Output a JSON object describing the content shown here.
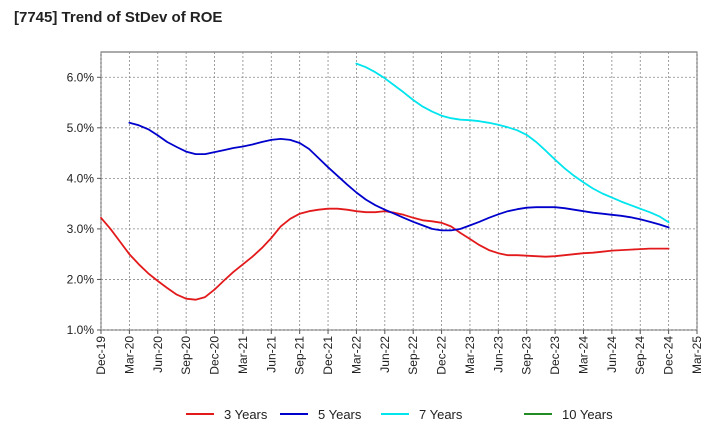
{
  "chart_data": {
    "type": "line",
    "title": "[7745]  Trend of StDev of ROE",
    "xlabel": "",
    "ylabel": "",
    "ylim": [
      1.0,
      6.5
    ],
    "y_ticks": [
      "1.0%",
      "2.0%",
      "3.0%",
      "4.0%",
      "5.0%",
      "6.0%"
    ],
    "y_tick_values": [
      1.0,
      2.0,
      3.0,
      4.0,
      5.0,
      6.0
    ],
    "x_ticks": [
      "Dec-19",
      "Mar-20",
      "Jun-20",
      "Sep-20",
      "Dec-20",
      "Mar-21",
      "Jun-21",
      "Sep-21",
      "Dec-21",
      "Mar-22",
      "Jun-22",
      "Sep-22",
      "Dec-22",
      "Mar-23",
      "Jun-23",
      "Sep-23",
      "Dec-23",
      "Mar-24",
      "Jun-24",
      "Sep-24",
      "Dec-24",
      "Mar-25"
    ],
    "grid": true,
    "legend_position": "bottom",
    "series": [
      {
        "name": "3 Years",
        "color": "#e31a1c",
        "points": [
          [
            "Dec-19",
            3.22
          ],
          [
            "Jan-20",
            3.0
          ],
          [
            "Feb-20",
            2.75
          ],
          [
            "Mar-20",
            2.5
          ],
          [
            "Apr-20",
            2.3
          ],
          [
            "May-20",
            2.12
          ],
          [
            "Jun-20",
            1.97
          ],
          [
            "Jul-20",
            1.83
          ],
          [
            "Aug-20",
            1.7
          ],
          [
            "Sep-20",
            1.62
          ],
          [
            "Oct-20",
            1.6
          ],
          [
            "Nov-20",
            1.65
          ],
          [
            "Dec-20",
            1.8
          ],
          [
            "Jan-21",
            1.98
          ],
          [
            "Feb-21",
            2.15
          ],
          [
            "Mar-21",
            2.3
          ],
          [
            "Apr-21",
            2.45
          ],
          [
            "May-21",
            2.62
          ],
          [
            "Jun-21",
            2.82
          ],
          [
            "Jul-21",
            3.05
          ],
          [
            "Aug-21",
            3.2
          ],
          [
            "Sep-21",
            3.3
          ],
          [
            "Oct-21",
            3.35
          ],
          [
            "Nov-21",
            3.38
          ],
          [
            "Dec-21",
            3.4
          ],
          [
            "Jan-22",
            3.4
          ],
          [
            "Feb-22",
            3.38
          ],
          [
            "Mar-22",
            3.35
          ],
          [
            "Apr-22",
            3.33
          ],
          [
            "May-22",
            3.33
          ],
          [
            "Jun-22",
            3.35
          ],
          [
            "Jul-22",
            3.32
          ],
          [
            "Aug-22",
            3.28
          ],
          [
            "Sep-22",
            3.22
          ],
          [
            "Oct-22",
            3.17
          ],
          [
            "Nov-22",
            3.15
          ],
          [
            "Dec-22",
            3.12
          ],
          [
            "Jan-23",
            3.05
          ],
          [
            "Feb-23",
            2.92
          ],
          [
            "Mar-23",
            2.8
          ],
          [
            "Apr-23",
            2.68
          ],
          [
            "May-23",
            2.58
          ],
          [
            "Jun-23",
            2.52
          ],
          [
            "Jul-23",
            2.48
          ],
          [
            "Aug-23",
            2.48
          ],
          [
            "Sep-23",
            2.47
          ],
          [
            "Oct-23",
            2.46
          ],
          [
            "Nov-23",
            2.45
          ],
          [
            "Dec-23",
            2.46
          ],
          [
            "Jan-24",
            2.48
          ],
          [
            "Feb-24",
            2.5
          ],
          [
            "Mar-24",
            2.52
          ],
          [
            "Apr-24",
            2.53
          ],
          [
            "May-24",
            2.55
          ],
          [
            "Jun-24",
            2.57
          ],
          [
            "Jul-24",
            2.58
          ],
          [
            "Aug-24",
            2.59
          ],
          [
            "Sep-24",
            2.6
          ],
          [
            "Oct-24",
            2.61
          ],
          [
            "Nov-24",
            2.61
          ],
          [
            "Dec-24",
            2.61
          ]
        ]
      },
      {
        "name": "5 Years",
        "color": "#0000cc",
        "points": [
          [
            "Mar-20",
            5.1
          ],
          [
            "Apr-20",
            5.05
          ],
          [
            "May-20",
            4.97
          ],
          [
            "Jun-20",
            4.85
          ],
          [
            "Jul-20",
            4.72
          ],
          [
            "Aug-20",
            4.62
          ],
          [
            "Sep-20",
            4.53
          ],
          [
            "Oct-20",
            4.48
          ],
          [
            "Nov-20",
            4.48
          ],
          [
            "Dec-20",
            4.52
          ],
          [
            "Jan-21",
            4.56
          ],
          [
            "Feb-21",
            4.6
          ],
          [
            "Mar-21",
            4.63
          ],
          [
            "Apr-21",
            4.67
          ],
          [
            "May-21",
            4.72
          ],
          [
            "Jun-21",
            4.76
          ],
          [
            "Jul-21",
            4.78
          ],
          [
            "Aug-21",
            4.76
          ],
          [
            "Sep-21",
            4.7
          ],
          [
            "Oct-21",
            4.58
          ],
          [
            "Nov-21",
            4.4
          ],
          [
            "Dec-21",
            4.22
          ],
          [
            "Jan-22",
            4.05
          ],
          [
            "Feb-22",
            3.88
          ],
          [
            "Mar-22",
            3.72
          ],
          [
            "Apr-22",
            3.58
          ],
          [
            "May-22",
            3.47
          ],
          [
            "Jun-22",
            3.38
          ],
          [
            "Jul-22",
            3.3
          ],
          [
            "Aug-22",
            3.22
          ],
          [
            "Sep-22",
            3.14
          ],
          [
            "Oct-22",
            3.07
          ],
          [
            "Nov-22",
            3.0
          ],
          [
            "Dec-22",
            2.97
          ],
          [
            "Jan-23",
            2.97
          ],
          [
            "Feb-23",
            3.0
          ],
          [
            "Mar-23",
            3.07
          ],
          [
            "Apr-23",
            3.14
          ],
          [
            "May-23",
            3.22
          ],
          [
            "Jun-23",
            3.29
          ],
          [
            "Jul-23",
            3.35
          ],
          [
            "Aug-23",
            3.39
          ],
          [
            "Sep-23",
            3.42
          ],
          [
            "Oct-23",
            3.43
          ],
          [
            "Nov-23",
            3.43
          ],
          [
            "Dec-23",
            3.43
          ],
          [
            "Jan-24",
            3.41
          ],
          [
            "Feb-24",
            3.38
          ],
          [
            "Mar-24",
            3.35
          ],
          [
            "Apr-24",
            3.32
          ],
          [
            "May-24",
            3.3
          ],
          [
            "Jun-24",
            3.28
          ],
          [
            "Jul-24",
            3.26
          ],
          [
            "Aug-24",
            3.23
          ],
          [
            "Sep-24",
            3.19
          ],
          [
            "Oct-24",
            3.14
          ],
          [
            "Nov-24",
            3.09
          ],
          [
            "Dec-24",
            3.03
          ]
        ]
      },
      {
        "name": "7 Years",
        "color": "#00e5ee",
        "points": [
          [
            "Mar-22",
            6.27
          ],
          [
            "Apr-22",
            6.2
          ],
          [
            "May-22",
            6.1
          ],
          [
            "Jun-22",
            5.98
          ],
          [
            "Jul-22",
            5.84
          ],
          [
            "Aug-22",
            5.7
          ],
          [
            "Sep-22",
            5.55
          ],
          [
            "Oct-22",
            5.42
          ],
          [
            "Nov-22",
            5.32
          ],
          [
            "Dec-22",
            5.24
          ],
          [
            "Jan-23",
            5.19
          ],
          [
            "Feb-23",
            5.16
          ],
          [
            "Mar-23",
            5.15
          ],
          [
            "Apr-23",
            5.13
          ],
          [
            "May-23",
            5.1
          ],
          [
            "Jun-23",
            5.06
          ],
          [
            "Jul-23",
            5.01
          ],
          [
            "Aug-23",
            4.95
          ],
          [
            "Sep-23",
            4.86
          ],
          [
            "Oct-23",
            4.72
          ],
          [
            "Nov-23",
            4.55
          ],
          [
            "Dec-23",
            4.37
          ],
          [
            "Jan-24",
            4.2
          ],
          [
            "Feb-24",
            4.05
          ],
          [
            "Mar-24",
            3.92
          ],
          [
            "Apr-24",
            3.8
          ],
          [
            "May-24",
            3.7
          ],
          [
            "Jun-24",
            3.62
          ],
          [
            "Jul-24",
            3.54
          ],
          [
            "Aug-24",
            3.47
          ],
          [
            "Sep-24",
            3.4
          ],
          [
            "Oct-24",
            3.33
          ],
          [
            "Nov-24",
            3.25
          ],
          [
            "Dec-24",
            3.13
          ]
        ]
      },
      {
        "name": "10 Years",
        "color": "#228b22",
        "points": []
      }
    ]
  }
}
